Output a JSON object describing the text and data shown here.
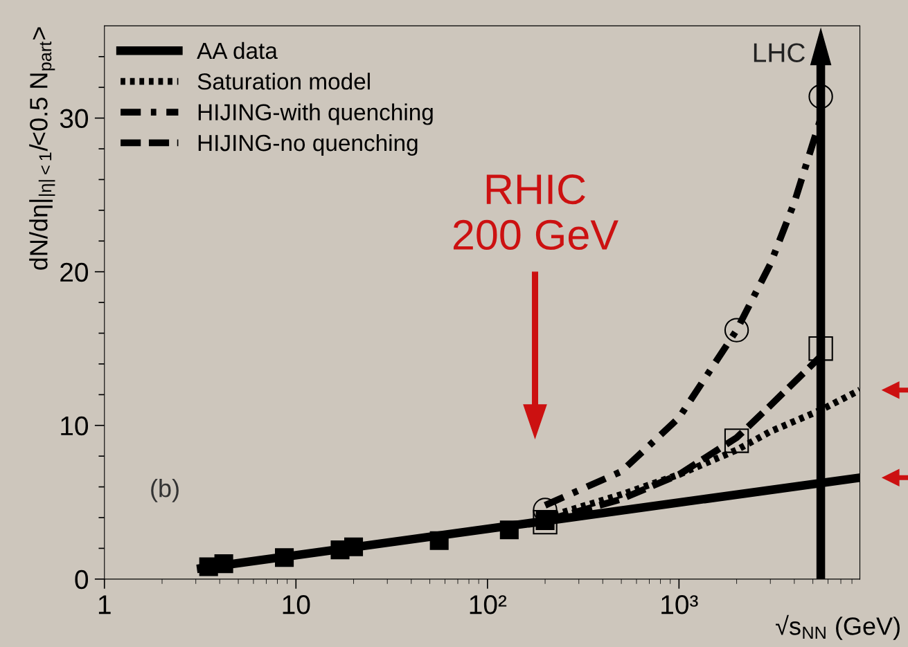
{
  "chart_data": {
    "type": "line",
    "xlabel": "√s$_{NN}$ (GeV)",
    "ylabel": "dN/dη|$_{|η|<1}$/<0.5 N$_{part}$>",
    "log": "x",
    "xlim": [
      1,
      8800
    ],
    "ylim": [
      0,
      36
    ],
    "xticks": [
      1,
      10,
      {
        "value": 100,
        "label": "10²"
      },
      {
        "value": 1000,
        "label": "10³"
      }
    ],
    "yticks": [
      0,
      {
        "value": 2,
        "label": null
      },
      {
        "value": 4,
        "label": null
      },
      {
        "value": 6,
        "label": null
      },
      {
        "value": 8,
        "label": null
      },
      10,
      {
        "value": 12,
        "label": null
      },
      {
        "value": 14,
        "label": null
      },
      {
        "value": 16,
        "label": null
      },
      {
        "value": 18,
        "label": null
      },
      20,
      {
        "value": 22,
        "label": null
      },
      {
        "value": 24,
        "label": null
      },
      {
        "value": 26,
        "label": null
      },
      {
        "value": 28,
        "label": null
      },
      30,
      {
        "value": 32,
        "label": null
      },
      {
        "value": 34,
        "label": null
      }
    ],
    "grid": false,
    "legend": "top left",
    "series": [
      {
        "name": "AA data",
        "color": "#000000",
        "line_style": "solid",
        "x": [
          3.2,
          8800
        ],
        "values": [
          0.7,
          6.6
        ]
      },
      {
        "name": "Saturation model",
        "color": "#000000",
        "line_style": "dotted",
        "x": [
          200,
          500,
          1000,
          2000,
          3000,
          5500,
          8800
        ],
        "values": [
          4.0,
          5.5,
          6.8,
          8.4,
          9.6,
          11.0,
          12.3
        ]
      },
      {
        "name": "HIJING-with quenching",
        "color": "#000000",
        "line_style": "dashdot",
        "x": [
          200,
          500,
          1000,
          2000,
          3000,
          4000,
          5500
        ],
        "values": [
          4.8,
          7.0,
          10.5,
          16.2,
          20.5,
          24.5,
          30.0
        ]
      },
      {
        "name": "HIJING-no quenching",
        "color": "#000000",
        "line_style": "dashed",
        "x": [
          200,
          500,
          1000,
          2000,
          3000,
          5500
        ],
        "values": [
          3.8,
          5.2,
          6.8,
          9.2,
          11.3,
          14.5
        ]
      },
      {
        "type": "scatter",
        "marker": "square",
        "color": "#000000",
        "x": [
          3.5,
          4.2,
          8.7,
          17,
          20,
          56,
          130,
          200
        ],
        "values": [
          0.8,
          1.0,
          1.4,
          1.9,
          2.1,
          2.5,
          3.2,
          3.8
        ]
      },
      {
        "type": "scatter",
        "marker": "circle",
        "color": "#000000",
        "x": [
          200,
          2000,
          5500
        ],
        "values": [
          4.5,
          16.2,
          31.4
        ]
      },
      {
        "type": "scatter",
        "marker": "square",
        "color": "#000000",
        "x": [
          200,
          2000,
          5500
        ],
        "values": [
          3.7,
          9.0,
          15.0
        ]
      }
    ],
    "ref_lines": [
      {
        "axis": "x",
        "value": 5500,
        "label": "LHC",
        "color": "#000000"
      }
    ],
    "annotations": [
      "(b)",
      "RHIC\n200 GeV"
    ]
  }
}
